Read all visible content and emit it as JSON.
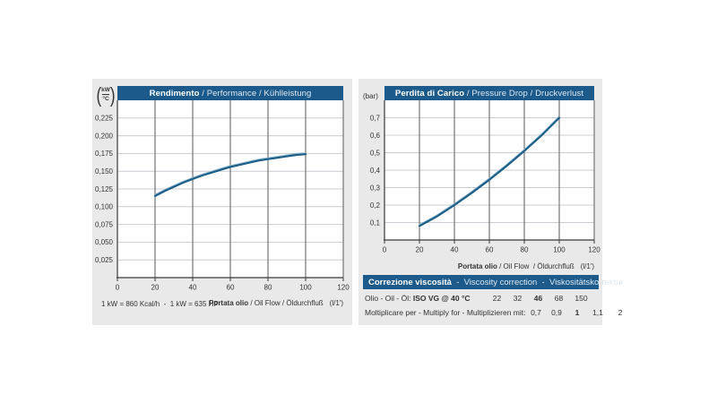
{
  "colors": {
    "header_blue": "#1b5a8a",
    "panel_gray": "#e9e9e9",
    "curve": "#1d5f86",
    "curve_highlight": "#8fb9d2",
    "grid_light": "#c9cdd1",
    "grid_dark": "#5a5a5a",
    "axis": "#3a3a3a"
  },
  "chart_data": [
    {
      "type": "line",
      "title": {
        "bold": "Rendimento",
        "rest": " / Performance / Kühlleistung"
      },
      "y_unit": {
        "numerator": "kW",
        "denominator": "°C"
      },
      "xlabel": {
        "bold": "Portata olio",
        "rest": " / Oil Flow / Öldurchfluß",
        "unit": "(l/1')"
      },
      "xlim": [
        0,
        120
      ],
      "ylim": [
        0,
        0.25
      ],
      "xtick_values": [
        0,
        20,
        40,
        60,
        80,
        100,
        120
      ],
      "xtick_labels": [
        "0",
        "20",
        "40",
        "60",
        "80",
        "100",
        "120"
      ],
      "ytick_values": [
        0.225,
        0.2,
        0.175,
        0.15,
        0.125,
        0.1,
        0.075,
        0.05,
        0.025
      ],
      "ytick_labels": [
        "0,225",
        "0,200",
        "0,175",
        "0,150",
        "0,125",
        "0,100",
        "0,075",
        "0,050",
        "0,025"
      ],
      "grid": {
        "horizontal": "light",
        "vertical": "dark"
      },
      "legend": "none",
      "series": [
        {
          "name": "cooling-capacity",
          "x": [
            20,
            25,
            30,
            35,
            40,
            45,
            50,
            55,
            60,
            65,
            70,
            75,
            80,
            85,
            90,
            95,
            100
          ],
          "y": [
            0.115,
            0.122,
            0.128,
            0.134,
            0.139,
            0.144,
            0.148,
            0.152,
            0.156,
            0.159,
            0.162,
            0.165,
            0.167,
            0.169,
            0.171,
            0.173,
            0.174
          ]
        }
      ],
      "footnote": "1 kW = 860 Kcal/h  -  1 kW = 635 HP"
    },
    {
      "type": "line",
      "title": {
        "bold": "Perdita di Carico",
        "rest": " / Pressure Drop / Druckverlust"
      },
      "y_unit_label": "(bar)",
      "xlabel": {
        "bold": "Portata olio",
        "rest": " / Oil Flow  / Öldurchfluß",
        "unit": "(l/1')"
      },
      "xlim": [
        0,
        120
      ],
      "ylim": [
        0,
        0.8
      ],
      "xtick_values": [
        0,
        20,
        40,
        60,
        80,
        100,
        120
      ],
      "xtick_labels": [
        "0",
        "20",
        "40",
        "60",
        "80",
        "100",
        "120"
      ],
      "ytick_values": [
        0.7,
        0.6,
        0.5,
        0.4,
        0.3,
        0.2,
        0.1
      ],
      "ytick_labels": [
        "0,7",
        "0,6",
        "0,5",
        "0,4",
        "0,3",
        "0,2",
        "0,1"
      ],
      "grid": {
        "horizontal": "light",
        "vertical": "dark"
      },
      "legend": "none",
      "series": [
        {
          "name": "pressure-drop",
          "x": [
            20,
            30,
            40,
            50,
            60,
            70,
            80,
            90,
            100
          ],
          "y": [
            0.08,
            0.135,
            0.2,
            0.27,
            0.345,
            0.425,
            0.51,
            0.6,
            0.7
          ]
        }
      ]
    }
  ],
  "correction_table": {
    "header": {
      "bold": "Correzione viscosità",
      "rest": "  -  Viscosity correction  -  Viskositätskorrektur"
    },
    "rows": [
      {
        "label_prefix": "Olio - Oil - Öl: ",
        "label_bold": "ISO VG @ 40 °C",
        "values": [
          "22",
          "32",
          "46",
          "68",
          "150"
        ],
        "bold_index": 2
      },
      {
        "label_prefix": "Moltiplicare per - Multiply for - Multiplizieren mit:",
        "label_bold": "",
        "values": [
          "0,7",
          "0,9",
          "1",
          "1,1",
          "2"
        ],
        "bold_index": 2
      }
    ]
  }
}
